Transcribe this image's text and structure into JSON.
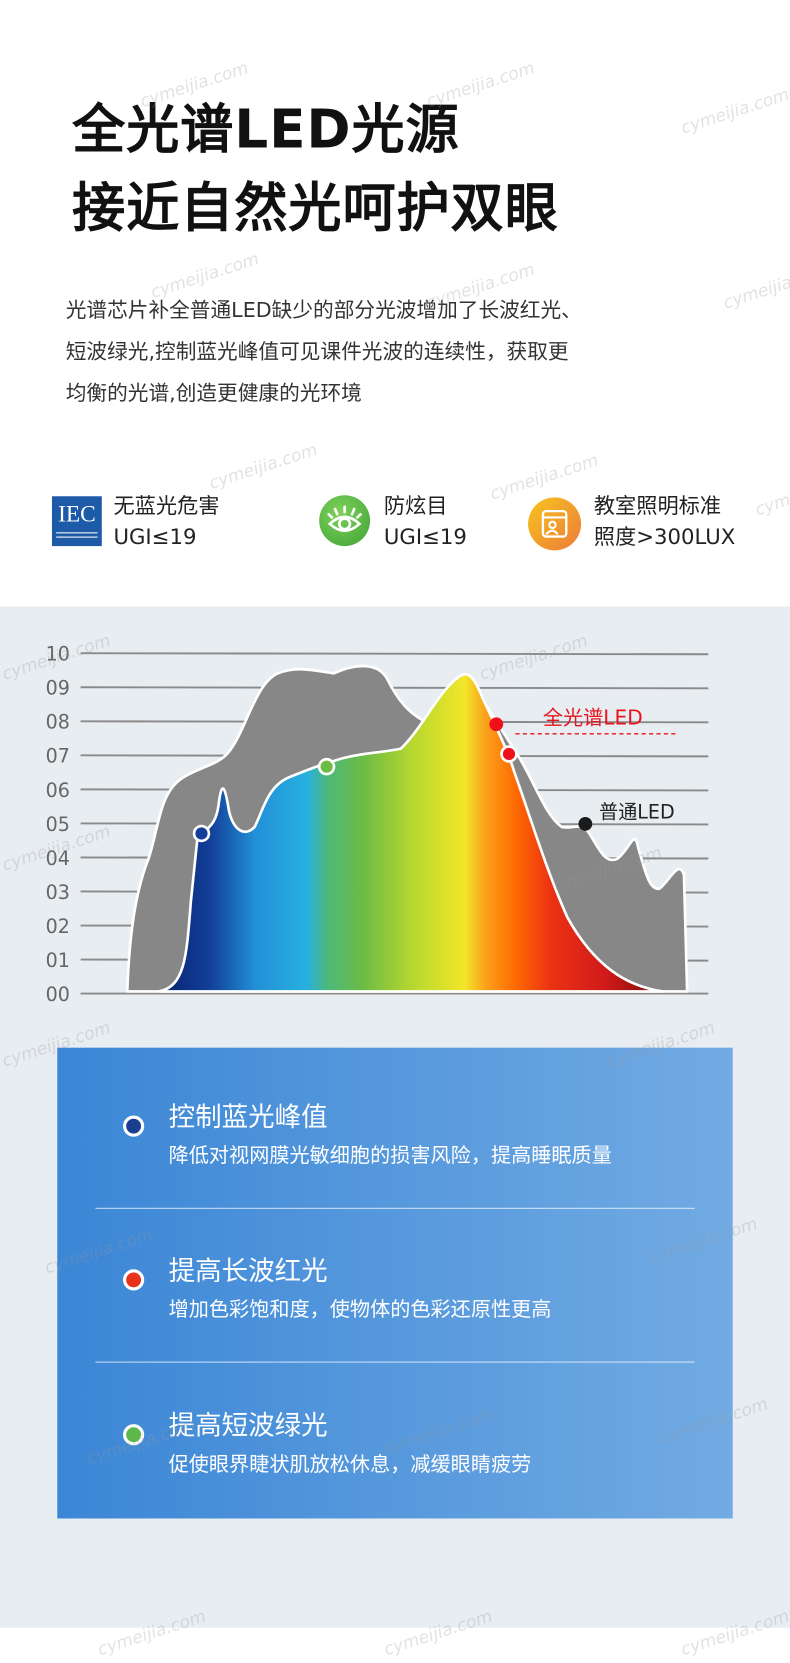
{
  "header": {
    "title_line1": "全光谱LED光源",
    "title_line2": "接近自然光呵护双眼",
    "description": [
      "光谱芯片补全普通LED缺少的部分光波增加了长波红光、",
      "短波绿光,控制蓝光峰值可见课件光波的连续性，获取更",
      "均衡的光谱,创造更健康的光环境"
    ]
  },
  "features": [
    {
      "icon": "iec-logo-icon",
      "line1": "无蓝光危害",
      "line2": "UGI≤19",
      "logo_text": "IEC"
    },
    {
      "icon": "eye-icon",
      "line1": "防炫目",
      "line2": "UGI≤19"
    },
    {
      "icon": "classroom-board-icon",
      "line1": "教室照明标准",
      "line2": "照度>300LUX"
    }
  ],
  "chart_data": {
    "type": "area",
    "yticks": [
      "10",
      "09",
      "08",
      "07",
      "06",
      "05",
      "04",
      "03",
      "02",
      "01",
      "00"
    ],
    "ylim": [
      0,
      10
    ],
    "grid": true,
    "series": [
      {
        "name": "普通LED",
        "color": "#878787"
      },
      {
        "name": "全光谱LED",
        "color": "spectrum-gradient"
      }
    ],
    "labels": {
      "full_spectrum": "全光谱LED",
      "ordinary": "普通LED"
    },
    "label_colors": {
      "full_spectrum": "#e8141c",
      "ordinary": "#222222"
    }
  },
  "benefits": [
    {
      "title": "控制蓝光峰值",
      "subtitle": "降低对视网膜光敏细胞的损害风险，提高睡眠质量",
      "color": "#1a3f8f"
    },
    {
      "title": "提高长波红光",
      "subtitle": "增加色彩饱和度，使物体的色彩还原性更高",
      "color": "#e8321c"
    },
    {
      "title": "提高短波绿光",
      "subtitle": "促使眼界睫状肌放松休息，减缓眼睛疲劳",
      "color": "#5cb84a"
    }
  ],
  "watermark": "cymeijia.com"
}
